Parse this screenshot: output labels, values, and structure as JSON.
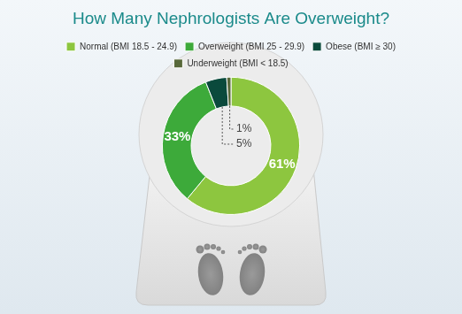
{
  "chart_data": {
    "type": "doughnut",
    "title": "How Many Nephrologists Are Overweight?",
    "categories": [
      "Normal (BMI 18.5 - 24.9)",
      "Overweight (BMI 25 - 29.9)",
      "Obese (BMI ≥ 30)",
      "Underweight (BMI < 18.5)"
    ],
    "values": [
      61,
      33,
      5,
      1
    ],
    "value_labels": [
      "61%",
      "33%",
      "5%",
      "1%"
    ],
    "colors": [
      "#8dc63f",
      "#3daa3a",
      "#0a4a3c",
      "#58683a"
    ],
    "legend": "top",
    "data_labels": true
  }
}
